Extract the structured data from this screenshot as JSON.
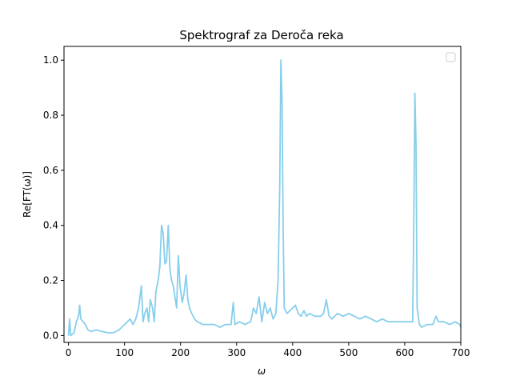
{
  "chart_data": {
    "type": "line",
    "title": "Spektrograf za Deroča reka",
    "xlabel": "ω",
    "ylabel": "Re[FT(ω)]",
    "xlim": [
      -8,
      700
    ],
    "ylim": [
      -0.025,
      1.05
    ],
    "x_ticks": [
      0,
      100,
      200,
      300,
      400,
      500,
      600,
      700
    ],
    "y_ticks": [
      0.0,
      0.2,
      0.4,
      0.6,
      0.8,
      1.0
    ],
    "x_tick_labels": [
      "0",
      "100",
      "200",
      "300",
      "400",
      "500",
      "600",
      "700"
    ],
    "y_tick_labels": [
      "0.0",
      "0.2",
      "0.4",
      "0.6",
      "0.8",
      "1.0"
    ],
    "grid": false,
    "legend": {
      "position": "top-right",
      "entries": []
    },
    "series": [
      {
        "color": "#87ceeb",
        "points": [
          [
            0,
            0.0
          ],
          [
            2,
            0.06
          ],
          [
            4,
            0.0
          ],
          [
            10,
            0.01
          ],
          [
            14,
            0.05
          ],
          [
            18,
            0.07
          ],
          [
            20,
            0.11
          ],
          [
            22,
            0.06
          ],
          [
            26,
            0.05
          ],
          [
            30,
            0.04
          ],
          [
            35,
            0.02
          ],
          [
            40,
            0.015
          ],
          [
            50,
            0.02
          ],
          [
            60,
            0.015
          ],
          [
            70,
            0.01
          ],
          [
            80,
            0.01
          ],
          [
            90,
            0.02
          ],
          [
            100,
            0.04
          ],
          [
            105,
            0.05
          ],
          [
            110,
            0.06
          ],
          [
            115,
            0.04
          ],
          [
            120,
            0.06
          ],
          [
            125,
            0.1
          ],
          [
            130,
            0.18
          ],
          [
            133,
            0.05
          ],
          [
            136,
            0.08
          ],
          [
            140,
            0.1
          ],
          [
            143,
            0.05
          ],
          [
            146,
            0.13
          ],
          [
            150,
            0.1
          ],
          [
            153,
            0.05
          ],
          [
            156,
            0.16
          ],
          [
            160,
            0.2
          ],
          [
            163,
            0.25
          ],
          [
            166,
            0.4
          ],
          [
            169,
            0.37
          ],
          [
            172,
            0.26
          ],
          [
            175,
            0.27
          ],
          [
            178,
            0.4
          ],
          [
            181,
            0.24
          ],
          [
            184,
            0.2
          ],
          [
            187,
            0.18
          ],
          [
            190,
            0.14
          ],
          [
            193,
            0.1
          ],
          [
            196,
            0.29
          ],
          [
            199,
            0.18
          ],
          [
            203,
            0.12
          ],
          [
            206,
            0.15
          ],
          [
            210,
            0.22
          ],
          [
            213,
            0.13
          ],
          [
            216,
            0.1
          ],
          [
            220,
            0.08
          ],
          [
            225,
            0.06
          ],
          [
            230,
            0.05
          ],
          [
            240,
            0.04
          ],
          [
            250,
            0.04
          ],
          [
            260,
            0.04
          ],
          [
            270,
            0.03
          ],
          [
            280,
            0.04
          ],
          [
            290,
            0.04
          ],
          [
            294,
            0.12
          ],
          [
            297,
            0.04
          ],
          [
            305,
            0.05
          ],
          [
            315,
            0.04
          ],
          [
            325,
            0.05
          ],
          [
            330,
            0.1
          ],
          [
            335,
            0.08
          ],
          [
            340,
            0.14
          ],
          [
            345,
            0.05
          ],
          [
            350,
            0.12
          ],
          [
            355,
            0.08
          ],
          [
            360,
            0.1
          ],
          [
            365,
            0.06
          ],
          [
            370,
            0.08
          ],
          [
            374,
            0.2
          ],
          [
            377,
            0.55
          ],
          [
            379,
            1.0
          ],
          [
            381,
            0.86
          ],
          [
            383,
            0.4
          ],
          [
            385,
            0.1
          ],
          [
            390,
            0.08
          ],
          [
            395,
            0.09
          ],
          [
            400,
            0.1
          ],
          [
            405,
            0.11
          ],
          [
            410,
            0.08
          ],
          [
            415,
            0.07
          ],
          [
            420,
            0.09
          ],
          [
            425,
            0.07
          ],
          [
            430,
            0.08
          ],
          [
            440,
            0.07
          ],
          [
            450,
            0.07
          ],
          [
            455,
            0.08
          ],
          [
            460,
            0.13
          ],
          [
            465,
            0.07
          ],
          [
            470,
            0.06
          ],
          [
            480,
            0.08
          ],
          [
            490,
            0.07
          ],
          [
            500,
            0.08
          ],
          [
            510,
            0.07
          ],
          [
            520,
            0.06
          ],
          [
            530,
            0.07
          ],
          [
            540,
            0.06
          ],
          [
            550,
            0.05
          ],
          [
            560,
            0.06
          ],
          [
            570,
            0.05
          ],
          [
            580,
            0.05
          ],
          [
            590,
            0.05
          ],
          [
            600,
            0.05
          ],
          [
            605,
            0.05
          ],
          [
            610,
            0.05
          ],
          [
            614,
            0.05
          ],
          [
            616,
            0.4
          ],
          [
            618,
            0.88
          ],
          [
            620,
            0.7
          ],
          [
            622,
            0.1
          ],
          [
            626,
            0.04
          ],
          [
            630,
            0.03
          ],
          [
            640,
            0.04
          ],
          [
            650,
            0.04
          ],
          [
            656,
            0.07
          ],
          [
            660,
            0.05
          ],
          [
            670,
            0.05
          ],
          [
            680,
            0.04
          ],
          [
            690,
            0.05
          ],
          [
            698,
            0.04
          ],
          [
            700,
            0.03
          ]
        ]
      }
    ]
  }
}
